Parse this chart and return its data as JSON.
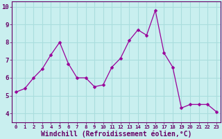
{
  "x": [
    0,
    1,
    2,
    3,
    4,
    5,
    6,
    7,
    8,
    9,
    10,
    11,
    12,
    13,
    14,
    15,
    16,
    17,
    18,
    19,
    20,
    21,
    22,
    23
  ],
  "y": [
    5.2,
    5.4,
    6.0,
    6.5,
    7.3,
    8.0,
    6.8,
    6.0,
    6.0,
    5.5,
    5.6,
    6.6,
    7.1,
    8.1,
    8.7,
    8.4,
    9.8,
    7.4,
    6.6,
    4.3,
    4.5,
    4.5,
    4.5,
    4.1
  ],
  "line_color": "#990099",
  "marker": "D",
  "marker_size": 2.5,
  "bg_color": "#c9efef",
  "grid_color": "#aadddd",
  "xlabel": "Windchill (Refroidissement éolien,°C)",
  "ylim": [
    3.5,
    10.3
  ],
  "xlim": [
    -0.5,
    23.5
  ],
  "xticks": [
    0,
    1,
    2,
    3,
    4,
    5,
    6,
    7,
    8,
    9,
    10,
    11,
    12,
    13,
    14,
    15,
    16,
    17,
    18,
    19,
    20,
    21,
    22,
    23
  ],
  "yticks": [
    4,
    5,
    6,
    7,
    8,
    9,
    10
  ],
  "xtick_fontsize": 5.2,
  "ytick_fontsize": 6.5,
  "xlabel_fontsize": 7.0,
  "label_color": "#660066",
  "spine_color": "#660066"
}
